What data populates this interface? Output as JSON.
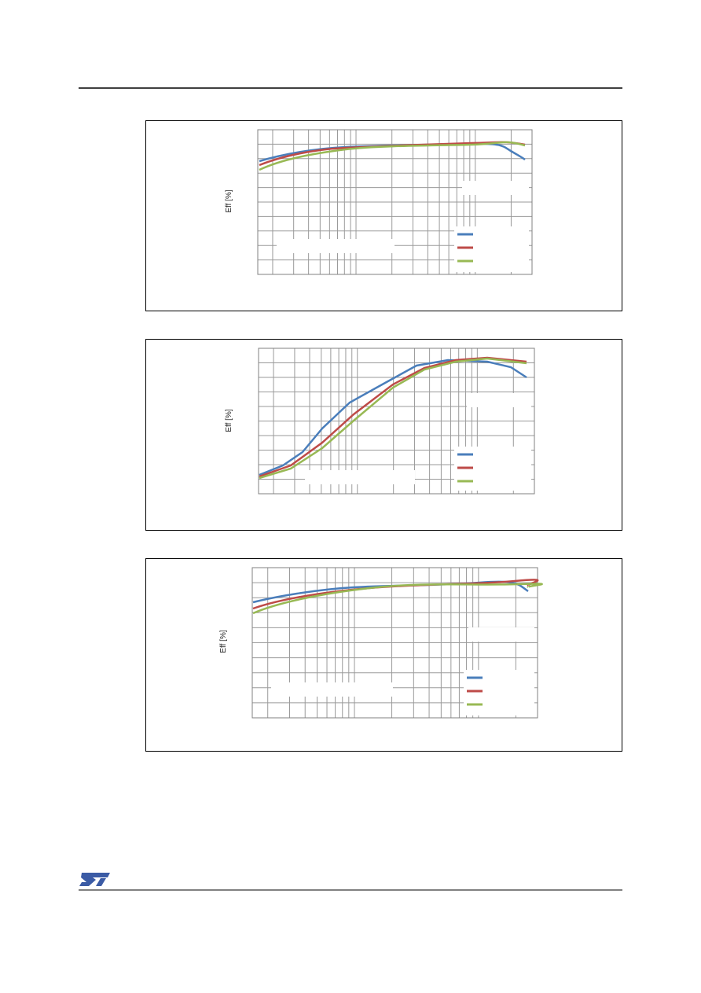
{
  "figures": [
    {
      "y_axis_label": "Eff [%]"
    },
    {
      "y_axis_label": "Eff [%]"
    },
    {
      "y_axis_label": "Eff [%]"
    }
  ]
}
